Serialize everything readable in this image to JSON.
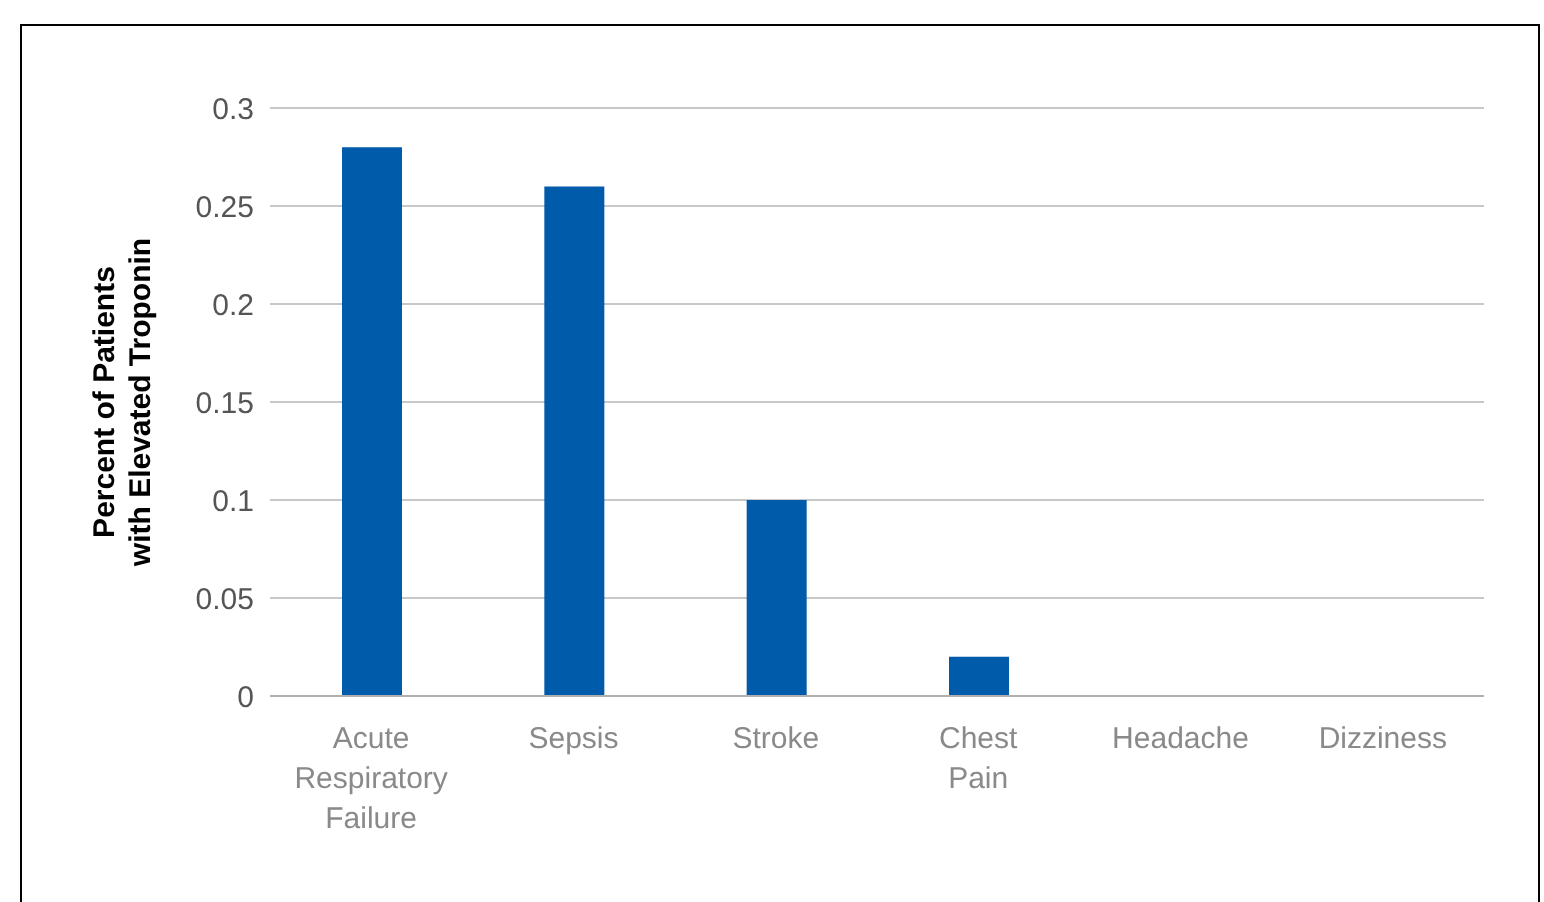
{
  "chart_data": {
    "type": "bar",
    "ylabel": "Percent of Patients with Elevated Troponin",
    "categories": [
      "Acute Respiratory Failure",
      "Sepsis",
      "Stroke",
      "Chest Pain",
      "Headache",
      "Dizziness"
    ],
    "values": [
      0.28,
      0.26,
      0.1,
      0.02,
      0,
      0
    ],
    "color": "#005baa",
    "ylim": [
      0,
      0.3
    ],
    "yticks": [
      0,
      0.05,
      0.1,
      0.15,
      0.2,
      0.25,
      0.3
    ],
    "grid": "y"
  }
}
